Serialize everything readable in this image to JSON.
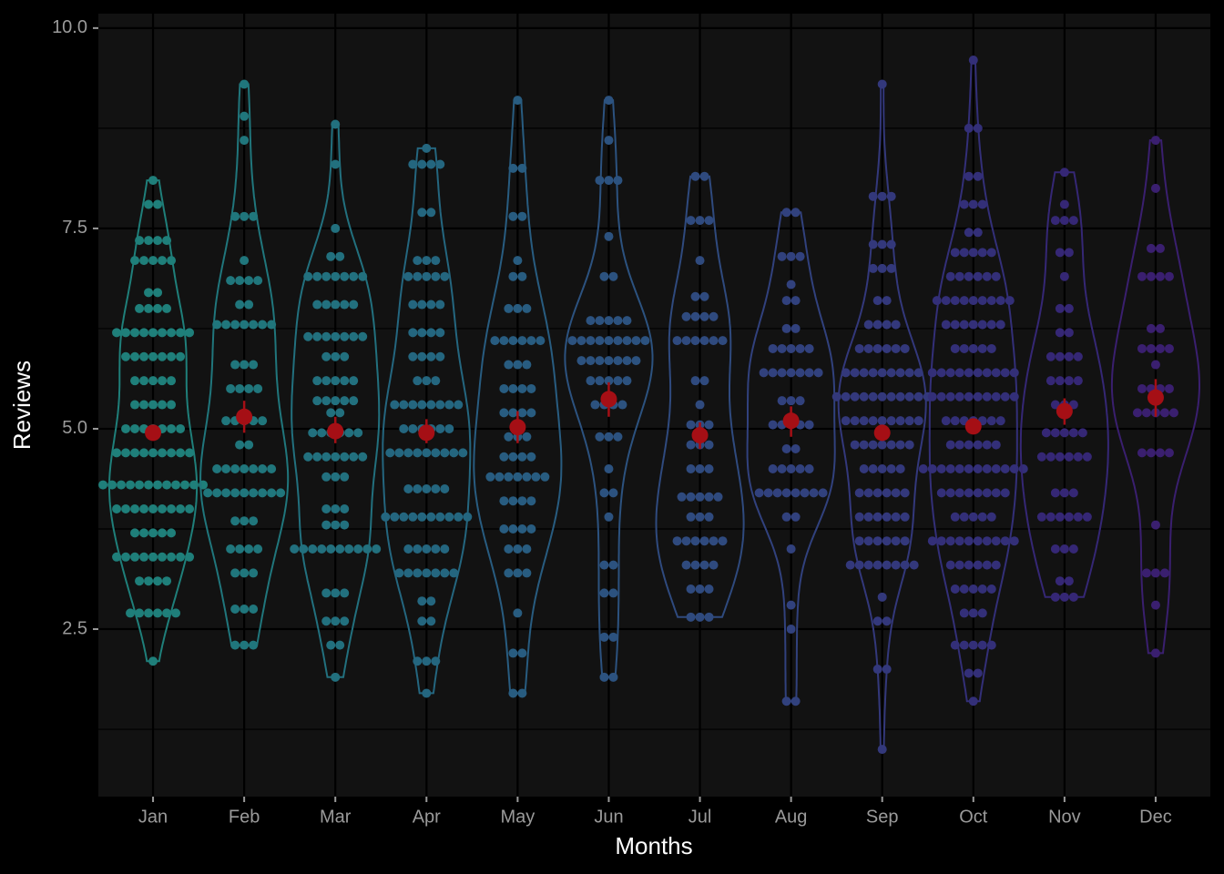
{
  "chart_data": {
    "type": "violin",
    "x_label": "Months",
    "y_label": "Reviews",
    "categories": [
      "Jan",
      "Feb",
      "Mar",
      "Apr",
      "May",
      "Jun",
      "Jul",
      "Aug",
      "Sep",
      "Oct",
      "Nov",
      "Dec"
    ],
    "ylim": [
      0.41,
      10.18
    ],
    "yticks": [
      {
        "value": 2.5,
        "label": "2.5"
      },
      {
        "value": 5,
        "label": "5.0"
      },
      {
        "value": 7.5,
        "label": "7.5"
      },
      {
        "value": 10,
        "label": "10.0"
      }
    ],
    "minor_yticks": [
      1.25,
      3.75,
      6.25,
      8.75
    ],
    "grid": true,
    "mean_color": "#a50f15",
    "series": [
      {
        "color": "#1f7f7a",
        "mean": 4.95,
        "ci": [
          4.85,
          5.05
        ],
        "dots": {
          "y": [
            8.1,
            7.8,
            7.35,
            7.1,
            6.7,
            6.5,
            6.2,
            5.9,
            5.6,
            5.3,
            5.0,
            4.7,
            4.3,
            4.0,
            3.7,
            3.4,
            3.1,
            2.7,
            2.1
          ],
          "n": [
            1,
            2,
            4,
            5,
            2,
            4,
            9,
            7,
            5,
            5,
            7,
            9,
            12,
            9,
            5,
            9,
            4,
            6,
            1
          ]
        }
      },
      {
        "color": "#20767c",
        "mean": 5.15,
        "ci": [
          4.95,
          5.35
        ],
        "dots": {
          "y": [
            9.3,
            8.9,
            8.6,
            7.65,
            7.1,
            6.85,
            6.55,
            6.3,
            5.8,
            5.5,
            5.1,
            4.8,
            4.5,
            4.2,
            3.85,
            3.5,
            3.2,
            2.75,
            2.3
          ],
          "n": [
            1,
            1,
            1,
            3,
            1,
            4,
            2,
            7,
            3,
            4,
            5,
            2,
            7,
            9,
            3,
            4,
            3,
            3,
            3
          ]
        }
      },
      {
        "color": "#22707e",
        "mean": 4.97,
        "ci": [
          4.82,
          5.15
        ],
        "dots": {
          "y": [
            8.8,
            8.3,
            7.5,
            7.15,
            6.9,
            6.55,
            6.15,
            5.9,
            5.6,
            5.35,
            5.2,
            4.95,
            4.65,
            4.4,
            4.0,
            3.8,
            3.5,
            2.95,
            2.6,
            2.3,
            1.9
          ],
          "n": [
            1,
            1,
            1,
            2,
            7,
            5,
            7,
            3,
            5,
            5,
            2,
            6,
            7,
            3,
            3,
            3,
            10,
            3,
            3,
            2,
            1
          ]
        }
      },
      {
        "color": "#24667f",
        "mean": 4.95,
        "ci": [
          4.82,
          5.12
        ],
        "dots": {
          "y": [
            8.5,
            8.3,
            7.7,
            7.1,
            6.9,
            6.55,
            6.2,
            5.9,
            5.6,
            5.3,
            5.0,
            4.7,
            4.25,
            3.9,
            3.5,
            3.2,
            2.85,
            2.6,
            2.1,
            1.7
          ],
          "n": [
            1,
            4,
            2,
            3,
            5,
            4,
            4,
            4,
            3,
            8,
            6,
            9,
            5,
            10,
            5,
            7,
            2,
            2,
            3,
            1
          ]
        }
      },
      {
        "color": "#285c80",
        "mean": 5.02,
        "ci": [
          4.82,
          5.22
        ],
        "dots": {
          "y": [
            9.1,
            8.25,
            7.65,
            7.1,
            6.9,
            6.5,
            6.1,
            5.8,
            5.5,
            5.2,
            4.9,
            4.65,
            4.4,
            4.1,
            3.75,
            3.5,
            3.2,
            2.7,
            2.2,
            1.7
          ],
          "n": [
            1,
            2,
            2,
            1,
            2,
            3,
            6,
            3,
            4,
            4,
            3,
            4,
            7,
            4,
            4,
            3,
            3,
            1,
            2,
            2
          ]
        }
      },
      {
        "color": "#2c527f",
        "mean": 5.37,
        "ci": [
          5.15,
          5.58
        ],
        "dots": {
          "y": [
            9.1,
            8.6,
            8.1,
            7.4,
            6.9,
            6.35,
            6.1,
            5.85,
            5.6,
            5.3,
            4.9,
            4.5,
            4.2,
            3.9,
            3.3,
            2.95,
            2.4,
            1.9
          ],
          "n": [
            1,
            1,
            3,
            1,
            2,
            5,
            9,
            7,
            5,
            4,
            3,
            1,
            2,
            1,
            2,
            2,
            2,
            2
          ]
        }
      },
      {
        "color": "#2f4a7e",
        "mean": 4.92,
        "ci": [
          4.75,
          5.08
        ],
        "dots": {
          "y": [
            8.15,
            7.6,
            7.1,
            6.65,
            6.4,
            6.1,
            5.6,
            5.3,
            5.05,
            4.8,
            4.5,
            4.15,
            3.9,
            3.6,
            3.3,
            3.0,
            2.65
          ],
          "n": [
            2,
            3,
            1,
            2,
            4,
            6,
            2,
            1,
            3,
            3,
            3,
            5,
            3,
            6,
            4,
            3,
            3
          ]
        }
      },
      {
        "color": "#31417d",
        "mean": 5.1,
        "ci": [
          4.9,
          5.28
        ],
        "dots": {
          "y": [
            7.7,
            7.15,
            6.8,
            6.6,
            6.25,
            6.0,
            5.7,
            5.35,
            5.05,
            4.75,
            4.5,
            4.2,
            3.9,
            3.5,
            2.8,
            2.5,
            1.6
          ],
          "n": [
            2,
            3,
            1,
            2,
            2,
            5,
            7,
            3,
            5,
            2,
            5,
            8,
            2,
            1,
            1,
            1,
            2
          ]
        }
      },
      {
        "color": "#33387b",
        "mean": 4.95,
        "ci": [
          4.85,
          5.05
        ],
        "dots": {
          "y": [
            9.3,
            7.9,
            7.3,
            7.0,
            6.6,
            6.3,
            6.0,
            5.7,
            5.4,
            5.1,
            4.8,
            4.5,
            4.2,
            3.9,
            3.6,
            3.3,
            2.9,
            2.6,
            2.0,
            1.0
          ],
          "n": [
            1,
            3,
            3,
            3,
            2,
            4,
            6,
            9,
            11,
            9,
            7,
            5,
            6,
            6,
            6,
            8,
            1,
            2,
            2,
            1
          ]
        }
      },
      {
        "color": "#332f78",
        "mean": 5.03,
        "ci": [
          4.95,
          5.12
        ],
        "dots": {
          "y": [
            9.6,
            8.75,
            8.15,
            7.8,
            7.45,
            7.2,
            6.9,
            6.6,
            6.3,
            6.0,
            5.7,
            5.4,
            5.1,
            4.8,
            4.5,
            4.2,
            3.9,
            3.6,
            3.3,
            3.0,
            2.7,
            2.3,
            1.95,
            1.6
          ],
          "n": [
            1,
            2,
            2,
            3,
            2,
            5,
            6,
            9,
            7,
            5,
            10,
            10,
            7,
            6,
            12,
            8,
            5,
            10,
            6,
            5,
            3,
            5,
            2,
            1
          ]
        }
      },
      {
        "color": "#352775",
        "mean": 5.22,
        "ci": [
          5.05,
          5.38
        ],
        "dots": {
          "y": [
            8.2,
            7.8,
            7.6,
            7.2,
            6.9,
            6.5,
            6.2,
            5.9,
            5.6,
            5.3,
            4.95,
            4.65,
            4.2,
            3.9,
            3.5,
            3.1,
            2.9
          ],
          "n": [
            1,
            1,
            3,
            2,
            1,
            2,
            2,
            4,
            4,
            3,
            5,
            6,
            3,
            6,
            3,
            2,
            3
          ]
        }
      },
      {
        "color": "#3a1f6f",
        "mean": 5.39,
        "ci": [
          5.15,
          5.62
        ],
        "dots": {
          "y": [
            8.6,
            8.0,
            7.25,
            6.9,
            6.25,
            6.0,
            5.8,
            5.5,
            5.2,
            4.7,
            3.8,
            3.2,
            2.8,
            2.2
          ],
          "n": [
            1,
            1,
            2,
            4,
            2,
            4,
            1,
            4,
            5,
            4,
            1,
            3,
            1,
            1
          ]
        }
      }
    ]
  }
}
